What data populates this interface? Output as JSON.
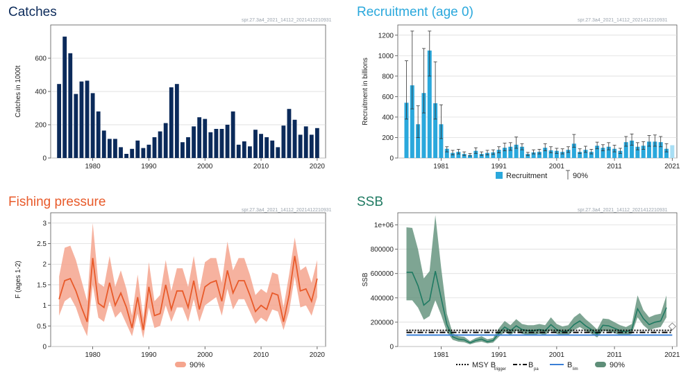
{
  "colors": {
    "catch_bar": "#0b2a5a",
    "recruit_bar": "#2aa8dc",
    "recruit_last": "#a8def4",
    "fishing_line": "#e85a2a",
    "fishing_band": "#f5a58e",
    "ssb_line": "#1f7a62",
    "ssb_band": "#5e8e78",
    "msy": "#000000",
    "blim": "#3a7fd6",
    "grid": "#d6d6d6",
    "title_catches": "#0b2a5a",
    "title_recruit": "#2aa8dc",
    "title_fishing": "#e85a2a",
    "title_ssb": "#1f7a62"
  },
  "chart_data": [
    {
      "id": "catches",
      "type": "bar",
      "title": "Catches",
      "source_id": "spr.27.3a4_2021_14112_2021412210931",
      "xlabel": "",
      "ylabel": "Catches in 1000t",
      "xlim": [
        1972.5,
        2021.5
      ],
      "ylim": [
        0,
        800
      ],
      "yticks": [
        0,
        200,
        400,
        600
      ],
      "xticks": [
        1980,
        1990,
        2000,
        2010,
        2020
      ],
      "x": [
        1974,
        1975,
        1976,
        1977,
        1978,
        1979,
        1980,
        1981,
        1982,
        1983,
        1984,
        1985,
        1986,
        1987,
        1988,
        1989,
        1990,
        1991,
        1992,
        1993,
        1994,
        1995,
        1996,
        1997,
        1998,
        1999,
        2000,
        2001,
        2002,
        2003,
        2004,
        2005,
        2006,
        2007,
        2008,
        2009,
        2010,
        2011,
        2012,
        2013,
        2014,
        2015,
        2016,
        2017,
        2018,
        2019,
        2020
      ],
      "values": [
        445,
        730,
        630,
        385,
        460,
        465,
        390,
        280,
        165,
        115,
        115,
        65,
        25,
        55,
        105,
        60,
        80,
        125,
        160,
        210,
        425,
        445,
        95,
        125,
        190,
        245,
        235,
        155,
        175,
        175,
        200,
        280,
        80,
        100,
        70,
        170,
        145,
        125,
        105,
        65,
        195,
        295,
        230,
        140,
        190,
        140,
        180
      ]
    },
    {
      "id": "recruitment",
      "type": "bar",
      "title": "Recruitment (age 0)",
      "source_id": "spr.27.3a4_2021_14112_2021412210931",
      "xlabel": "",
      "ylabel": "Recruitment in billions",
      "xlim": [
        1973.5,
        2021.8
      ],
      "ylim": [
        0,
        1300
      ],
      "yticks": [
        0,
        200,
        400,
        600,
        800,
        1000,
        1200
      ],
      "xticks": [
        1981,
        1991,
        2001,
        2011,
        2021
      ],
      "legend": [
        "Recruitment",
        "90%"
      ],
      "x": [
        1975,
        1976,
        1977,
        1978,
        1979,
        1980,
        1981,
        1982,
        1983,
        1984,
        1985,
        1986,
        1987,
        1988,
        1989,
        1990,
        1991,
        1992,
        1993,
        1994,
        1995,
        1996,
        1997,
        1998,
        1999,
        2000,
        2001,
        2002,
        2003,
        2004,
        2005,
        2006,
        2007,
        2008,
        2009,
        2010,
        2011,
        2012,
        2013,
        2014,
        2015,
        2016,
        2017,
        2018,
        2019,
        2020,
        2021
      ],
      "values": [
        540,
        710,
        330,
        635,
        1050,
        535,
        330,
        90,
        50,
        60,
        40,
        30,
        70,
        40,
        50,
        55,
        80,
        100,
        110,
        130,
        110,
        40,
        55,
        60,
        100,
        75,
        70,
        60,
        80,
        140,
        60,
        80,
        60,
        120,
        100,
        110,
        90,
        70,
        155,
        170,
        110,
        120,
        160,
        160,
        155,
        90,
        125
      ],
      "lower": [
        380,
        480,
        200,
        440,
        800,
        380,
        190,
        60,
        30,
        40,
        25,
        20,
        45,
        25,
        30,
        35,
        50,
        70,
        75,
        95,
        80,
        25,
        40,
        40,
        70,
        50,
        45,
        40,
        55,
        105,
        45,
        55,
        40,
        90,
        70,
        80,
        60,
        45,
        115,
        125,
        80,
        85,
        115,
        115,
        110,
        60,
        null
      ],
      "upper": [
        950,
        1240,
        510,
        1070,
        1240,
        940,
        520,
        110,
        75,
        85,
        60,
        45,
        100,
        60,
        75,
        80,
        110,
        145,
        150,
        205,
        140,
        55,
        80,
        85,
        140,
        110,
        95,
        90,
        110,
        230,
        90,
        115,
        85,
        155,
        130,
        150,
        125,
        95,
        210,
        235,
        150,
        160,
        220,
        225,
        210,
        140,
        null
      ]
    },
    {
      "id": "fishing",
      "type": "line",
      "title": "Fishing pressure",
      "source_id": "spr.27.3a4_2021_14112_2021412210931",
      "xlabel": "",
      "ylabel": "F (ages 1-2)",
      "xlim": [
        1972.5,
        2021.5
      ],
      "ylim": [
        0,
        3.25
      ],
      "yticks": [
        0,
        0.5,
        1,
        1.5,
        2,
        2.5,
        3
      ],
      "xticks": [
        1980,
        1990,
        2000,
        2010,
        2020
      ],
      "legend": [
        "90%"
      ],
      "x": [
        1974,
        1975,
        1976,
        1977,
        1978,
        1979,
        1980,
        1981,
        1982,
        1983,
        1984,
        1985,
        1986,
        1987,
        1988,
        1989,
        1990,
        1991,
        1992,
        1993,
        1994,
        1995,
        1996,
        1997,
        1998,
        1999,
        2000,
        2001,
        2002,
        2003,
        2004,
        2005,
        2006,
        2007,
        2008,
        2009,
        2010,
        2011,
        2012,
        2013,
        2014,
        2015,
        2016,
        2017,
        2018,
        2019,
        2020
      ],
      "values": [
        1.15,
        1.6,
        1.65,
        1.35,
        0.95,
        0.6,
        2.15,
        1.05,
        0.95,
        1.55,
        1.0,
        1.3,
        0.95,
        0.45,
        1.2,
        0.4,
        1.45,
        0.75,
        0.8,
        1.5,
        0.9,
        1.35,
        1.35,
        0.95,
        1.6,
        0.9,
        1.45,
        1.55,
        1.6,
        1.1,
        1.85,
        1.3,
        1.6,
        1.6,
        1.25,
        0.85,
        1.0,
        0.9,
        1.3,
        1.25,
        0.6,
        1.25,
        2.2,
        1.35,
        1.4,
        1.1,
        1.65
      ],
      "lower": [
        0.75,
        1.1,
        1.2,
        0.95,
        0.55,
        0.25,
        1.5,
        0.7,
        0.6,
        1.1,
        0.7,
        0.85,
        0.55,
        0.25,
        0.8,
        0.2,
        0.95,
        0.45,
        0.5,
        1.0,
        0.6,
        0.95,
        0.95,
        0.6,
        1.15,
        0.6,
        1.0,
        1.1,
        1.2,
        0.75,
        1.4,
        0.9,
        1.15,
        1.15,
        0.85,
        0.55,
        0.7,
        0.6,
        0.9,
        0.85,
        0.4,
        0.85,
        1.7,
        0.95,
        1.0,
        0.75,
        1.2
      ],
      "upper": [
        1.7,
        2.4,
        2.45,
        2.1,
        1.6,
        1.1,
        3.0,
        1.55,
        1.45,
        2.2,
        1.45,
        1.85,
        1.4,
        0.75,
        1.75,
        0.7,
        2.05,
        1.1,
        1.25,
        2.1,
        1.35,
        1.9,
        1.9,
        1.45,
        2.2,
        1.35,
        2.05,
        2.15,
        2.15,
        1.55,
        2.55,
        1.85,
        2.15,
        2.15,
        1.75,
        1.25,
        1.4,
        1.3,
        1.8,
        1.75,
        0.95,
        1.75,
        2.65,
        1.85,
        1.95,
        1.55,
        2.1
      ]
    },
    {
      "id": "ssb",
      "type": "line",
      "title": "SSB",
      "source_id": "spr.27.3a4_2021_14112_2021412210931",
      "xlabel": "",
      "ylabel": "SSB",
      "xlim": [
        1973.5,
        2021.8
      ],
      "ylim": [
        0,
        1100000
      ],
      "yticks": [
        0,
        200000,
        400000,
        600000,
        800000,
        1000000
      ],
      "ytick_labels": [
        "0",
        "200000",
        "400000",
        "600000",
        "800000",
        "1e+06"
      ],
      "xticks": [
        1981,
        1991,
        2001,
        2011,
        2021
      ],
      "legend": [
        "MSY B",
        "B",
        "B",
        "90%"
      ],
      "legend_subscripts": [
        "trigger",
        "pa",
        "lim",
        ""
      ],
      "msy_btrigger": 125000,
      "bpa": 125000,
      "blim": 94000,
      "x": [
        1975,
        1976,
        1977,
        1978,
        1979,
        1980,
        1981,
        1982,
        1983,
        1984,
        1985,
        1986,
        1987,
        1988,
        1989,
        1990,
        1991,
        1992,
        1993,
        1994,
        1995,
        1996,
        1997,
        1998,
        1999,
        2000,
        2001,
        2002,
        2003,
        2004,
        2005,
        2006,
        2007,
        2008,
        2009,
        2010,
        2011,
        2012,
        2013,
        2014,
        2015,
        2016,
        2017,
        2018,
        2019,
        2020
      ],
      "values": [
        610000,
        610000,
        500000,
        340000,
        380000,
        620000,
        400000,
        180000,
        80000,
        60000,
        55000,
        30000,
        50000,
        60000,
        40000,
        50000,
        110000,
        160000,
        130000,
        170000,
        140000,
        130000,
        130000,
        140000,
        130000,
        180000,
        140000,
        120000,
        130000,
        180000,
        210000,
        170000,
        140000,
        100000,
        175000,
        170000,
        150000,
        130000,
        120000,
        140000,
        310000,
        230000,
        180000,
        200000,
        210000,
        320000
      ],
      "lower": [
        380000,
        380000,
        320000,
        220000,
        250000,
        380000,
        260000,
        120000,
        55000,
        40000,
        35000,
        18000,
        32000,
        40000,
        26000,
        32000,
        80000,
        120000,
        95000,
        130000,
        105000,
        95000,
        95000,
        105000,
        95000,
        135000,
        105000,
        90000,
        95000,
        135000,
        160000,
        130000,
        105000,
        75000,
        130000,
        125000,
        110000,
        95000,
        90000,
        105000,
        240000,
        175000,
        135000,
        150000,
        160000,
        240000
      ],
      "upper": [
        980000,
        975000,
        800000,
        560000,
        620000,
        1080000,
        650000,
        270000,
        110000,
        85000,
        80000,
        45000,
        70000,
        85000,
        60000,
        70000,
        150000,
        210000,
        175000,
        225000,
        185000,
        175000,
        175000,
        185000,
        175000,
        240000,
        185000,
        165000,
        175000,
        240000,
        275000,
        225000,
        185000,
        140000,
        230000,
        225000,
        200000,
        175000,
        160000,
        185000,
        420000,
        300000,
        240000,
        260000,
        270000,
        420000
      ],
      "final_marker": {
        "x": 2021,
        "value": 165000
      }
    }
  ]
}
